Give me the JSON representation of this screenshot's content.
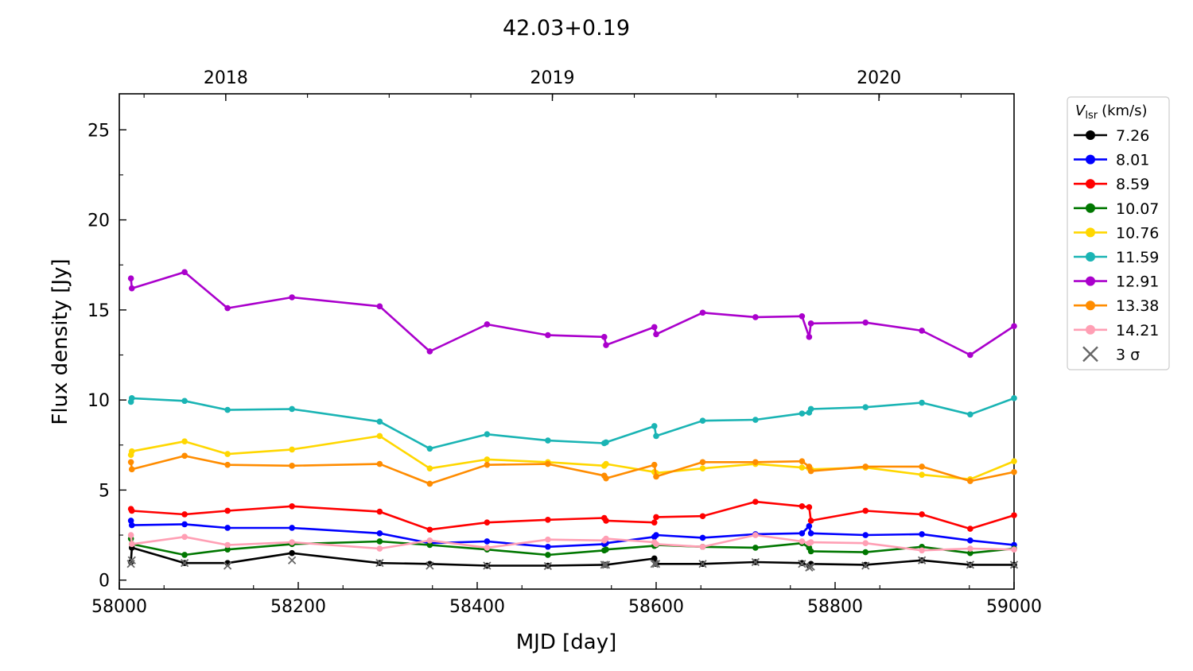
{
  "chart_data": {
    "type": "line",
    "title": "42.03+0.19",
    "xlabel": "MJD [day]",
    "ylabel": "Flux density [Jy]",
    "xlim": [
      58000,
      59000
    ],
    "ylim": [
      -0.5,
      27
    ],
    "x_ticks": [
      58000,
      58200,
      58400,
      58600,
      58800,
      59000
    ],
    "y_ticks": [
      0,
      5,
      10,
      15,
      20,
      25
    ],
    "top_axis": {
      "ticks": [
        {
          "label": "2018",
          "mjd": 58119
        },
        {
          "label": "2019",
          "mjd": 58484
        },
        {
          "label": "2020",
          "mjd": 58849
        }
      ],
      "minor_every_months": 3
    },
    "grid": false,
    "legend": {
      "placement": "outside-right",
      "title_main": "V",
      "title_sub": "lsr",
      "title_units": "(km/s)",
      "sigma_label": "3 σ"
    },
    "x": [
      58013,
      58014,
      58073,
      58121,
      58193,
      58291,
      58347,
      58411,
      58479,
      58542,
      58544,
      58598,
      58600,
      58652,
      58711,
      58763,
      58771,
      58773,
      58834,
      58897,
      58951,
      59000
    ],
    "series": [
      {
        "name": "7.26",
        "color": "#000000",
        "values": [
          1.0,
          1.8,
          0.95,
          0.95,
          1.5,
          0.95,
          0.9,
          0.8,
          0.8,
          0.85,
          0.85,
          1.2,
          0.9,
          0.9,
          1.0,
          0.95,
          0.8,
          0.9,
          0.85,
          1.1,
          0.85,
          0.85
        ],
        "sigma": [
          0.9,
          1.1,
          0.95,
          0.8,
          1.1,
          0.95,
          0.8,
          0.8,
          0.78,
          0.85,
          0.85,
          0.9,
          0.9,
          0.9,
          1.0,
          0.9,
          0.7,
          0.75,
          0.8,
          1.1,
          0.85,
          0.85
        ]
      },
      {
        "name": "8.01",
        "color": "#0000ff",
        "values": [
          3.3,
          3.05,
          3.1,
          2.9,
          2.9,
          2.6,
          2.05,
          2.15,
          1.85,
          2.0,
          2.05,
          2.4,
          2.5,
          2.35,
          2.55,
          2.6,
          3.0,
          2.6,
          2.5,
          2.55,
          2.2,
          1.95
        ]
      },
      {
        "name": "8.59",
        "color": "#ff0000",
        "values": [
          3.95,
          3.85,
          3.65,
          3.85,
          4.1,
          3.8,
          2.8,
          3.2,
          3.35,
          3.45,
          3.3,
          3.2,
          3.5,
          3.55,
          4.35,
          4.1,
          4.05,
          3.3,
          3.85,
          3.65,
          2.85,
          3.6
        ]
      },
      {
        "name": "10.07",
        "color": "#007700",
        "values": [
          2.3,
          2.0,
          1.4,
          1.7,
          2.0,
          2.15,
          1.95,
          1.7,
          1.4,
          1.65,
          1.7,
          1.9,
          1.95,
          1.85,
          1.8,
          2.05,
          1.8,
          1.6,
          1.55,
          1.85,
          1.5,
          1.75
        ]
      },
      {
        "name": "10.76",
        "color": "#ffd700",
        "values": [
          6.95,
          7.15,
          7.7,
          7.0,
          7.25,
          8.0,
          6.2,
          6.7,
          6.55,
          6.35,
          6.45,
          6.0,
          5.95,
          6.2,
          6.45,
          6.25,
          6.2,
          6.15,
          6.25,
          5.85,
          5.6,
          6.6
        ]
      },
      {
        "name": "11.59",
        "color": "#1ab4b4",
        "values": [
          9.9,
          10.1,
          9.95,
          9.45,
          9.5,
          8.8,
          7.3,
          8.1,
          7.75,
          7.6,
          7.65,
          8.55,
          8.0,
          8.85,
          8.9,
          9.25,
          9.3,
          9.5,
          9.6,
          9.85,
          9.2,
          10.1
        ]
      },
      {
        "name": "12.91",
        "color": "#aa00cc",
        "values": [
          16.75,
          16.2,
          17.1,
          15.1,
          15.7,
          15.2,
          12.7,
          14.2,
          13.6,
          13.5,
          13.05,
          14.05,
          13.65,
          14.85,
          14.6,
          14.65,
          13.5,
          14.25,
          14.3,
          13.85,
          12.5,
          14.1
        ]
      },
      {
        "name": "13.38",
        "color": "#ff8c00",
        "values": [
          6.55,
          6.15,
          6.9,
          6.4,
          6.35,
          6.45,
          5.35,
          6.4,
          6.45,
          5.8,
          5.65,
          6.4,
          5.75,
          6.55,
          6.55,
          6.6,
          6.3,
          6.05,
          6.3,
          6.3,
          5.5,
          6.0
        ]
      },
      {
        "name": "14.21",
        "color": "#ff9fb4",
        "values": [
          2.5,
          2.0,
          2.4,
          1.95,
          2.1,
          1.75,
          2.2,
          1.8,
          2.25,
          2.2,
          2.3,
          2.1,
          2.0,
          1.85,
          2.5,
          2.15,
          2.05,
          2.1,
          2.05,
          1.65,
          1.75,
          1.7
        ]
      }
    ]
  }
}
